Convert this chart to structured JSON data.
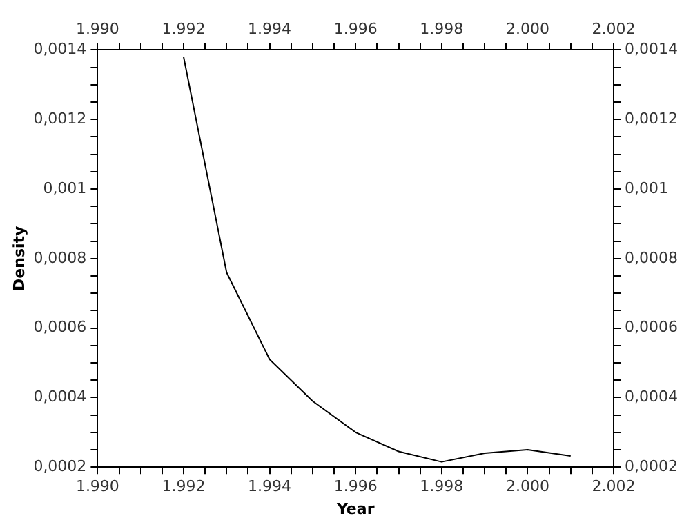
{
  "chart_data": {
    "type": "line",
    "xlabel": "Year",
    "ylabel": "Density",
    "x": [
      1992,
      1993,
      1994,
      1995,
      1996,
      1997,
      1998,
      1999,
      2000,
      2001
    ],
    "series": [
      {
        "color": "#000000",
        "values": [
          0.00138,
          0.00076,
          0.00051,
          0.00039,
          0.0003,
          0.000245,
          0.000215,
          0.00024,
          0.00025,
          0.000232
        ]
      }
    ],
    "xlim": [
      1990,
      2002
    ],
    "xticks": [
      {
        "value": 1990,
        "label": "1.990"
      },
      {
        "value": 1990.5,
        "label": null
      },
      {
        "value": 1991,
        "label": null
      },
      {
        "value": 1991.5,
        "label": null
      },
      {
        "value": 1992,
        "label": "1.992"
      },
      {
        "value": 1992.5,
        "label": null
      },
      {
        "value": 1993,
        "label": null
      },
      {
        "value": 1993.5,
        "label": null
      },
      {
        "value": 1994,
        "label": "1.994"
      },
      {
        "value": 1994.5,
        "label": null
      },
      {
        "value": 1995,
        "label": null
      },
      {
        "value": 1995.5,
        "label": null
      },
      {
        "value": 1996,
        "label": "1.996"
      },
      {
        "value": 1996.5,
        "label": null
      },
      {
        "value": 1997,
        "label": null
      },
      {
        "value": 1997.5,
        "label": null
      },
      {
        "value": 1998,
        "label": "1.998"
      },
      {
        "value": 1998.5,
        "label": null
      },
      {
        "value": 1999,
        "label": null
      },
      {
        "value": 1999.5,
        "label": null
      },
      {
        "value": 2000,
        "label": "2.000"
      },
      {
        "value": 2000.5,
        "label": null
      },
      {
        "value": 2001,
        "label": null
      },
      {
        "value": 2001.5,
        "label": null
      },
      {
        "value": 2002,
        "label": "2.002"
      }
    ],
    "x2lim": [
      1990,
      2002
    ],
    "x2ticks": [
      {
        "value": 1990,
        "label": "1.990"
      },
      {
        "value": 1990.5,
        "label": null
      },
      {
        "value": 1991,
        "label": null
      },
      {
        "value": 1991.5,
        "label": null
      },
      {
        "value": 1992,
        "label": "1.992"
      },
      {
        "value": 1992.5,
        "label": null
      },
      {
        "value": 1993,
        "label": null
      },
      {
        "value": 1993.5,
        "label": null
      },
      {
        "value": 1994,
        "label": "1.994"
      },
      {
        "value": 1994.5,
        "label": null
      },
      {
        "value": 1995,
        "label": null
      },
      {
        "value": 1995.5,
        "label": null
      },
      {
        "value": 1996,
        "label": "1.996"
      },
      {
        "value": 1996.5,
        "label": null
      },
      {
        "value": 1997,
        "label": null
      },
      {
        "value": 1997.5,
        "label": null
      },
      {
        "value": 1998,
        "label": "1.998"
      },
      {
        "value": 1998.5,
        "label": null
      },
      {
        "value": 1999,
        "label": null
      },
      {
        "value": 1999.5,
        "label": null
      },
      {
        "value": 2000,
        "label": "2.000"
      },
      {
        "value": 2000.5,
        "label": null
      },
      {
        "value": 2001,
        "label": null
      },
      {
        "value": 2001.5,
        "label": null
      },
      {
        "value": 2002,
        "label": "2.002"
      }
    ],
    "ylim": [
      0.0002,
      0.0014
    ],
    "yticks": [
      {
        "value": 0.0002,
        "label": "0,0002"
      },
      {
        "value": 0.00025,
        "label": null
      },
      {
        "value": 0.0003,
        "label": null
      },
      {
        "value": 0.00035,
        "label": null
      },
      {
        "value": 0.0004,
        "label": "0,0004"
      },
      {
        "value": 0.00045,
        "label": null
      },
      {
        "value": 0.0005,
        "label": null
      },
      {
        "value": 0.00055,
        "label": null
      },
      {
        "value": 0.0006,
        "label": "0,0006"
      },
      {
        "value": 0.00065,
        "label": null
      },
      {
        "value": 0.0007,
        "label": null
      },
      {
        "value": 0.00075,
        "label": null
      },
      {
        "value": 0.0008,
        "label": "0,0008"
      },
      {
        "value": 0.00085,
        "label": null
      },
      {
        "value": 0.0009,
        "label": null
      },
      {
        "value": 0.00095,
        "label": null
      },
      {
        "value": 0.001,
        "label": "0,001"
      },
      {
        "value": 0.00105,
        "label": null
      },
      {
        "value": 0.0011,
        "label": null
      },
      {
        "value": 0.00115,
        "label": null
      },
      {
        "value": 0.0012,
        "label": "0,0012"
      },
      {
        "value": 0.00125,
        "label": null
      },
      {
        "value": 0.0013,
        "label": null
      },
      {
        "value": 0.00135,
        "label": null
      },
      {
        "value": 0.0014,
        "label": "0,0014"
      }
    ],
    "y2lim": [
      0.0002,
      0.0014
    ],
    "y2ticks": [
      {
        "value": 0.0002,
        "label": "0,0002"
      },
      {
        "value": 0.00025,
        "label": null
      },
      {
        "value": 0.0003,
        "label": null
      },
      {
        "value": 0.00035,
        "label": null
      },
      {
        "value": 0.0004,
        "label": "0,0004"
      },
      {
        "value": 0.00045,
        "label": null
      },
      {
        "value": 0.0005,
        "label": null
      },
      {
        "value": 0.00055,
        "label": null
      },
      {
        "value": 0.0006,
        "label": "0,0006"
      },
      {
        "value": 0.00065,
        "label": null
      },
      {
        "value": 0.0007,
        "label": null
      },
      {
        "value": 0.00075,
        "label": null
      },
      {
        "value": 0.0008,
        "label": "0,0008"
      },
      {
        "value": 0.00085,
        "label": null
      },
      {
        "value": 0.0009,
        "label": null
      },
      {
        "value": 0.00095,
        "label": null
      },
      {
        "value": 0.001,
        "label": "0,001"
      },
      {
        "value": 0.00105,
        "label": null
      },
      {
        "value": 0.0011,
        "label": null
      },
      {
        "value": 0.00115,
        "label": null
      },
      {
        "value": 0.0012,
        "label": "0,0012"
      },
      {
        "value": 0.00125,
        "label": null
      },
      {
        "value": 0.0013,
        "label": null
      },
      {
        "value": 0.00135,
        "label": null
      },
      {
        "value": 0.0014,
        "label": "0,0014"
      }
    ]
  }
}
